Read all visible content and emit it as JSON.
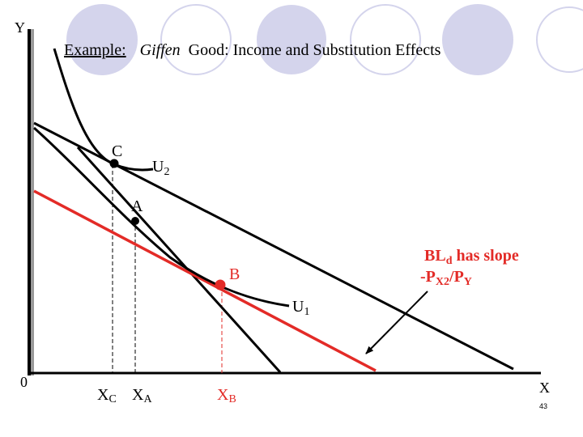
{
  "slide": {
    "title_prefix": "Example:",
    "title_italic": "Giffen",
    "title_rest": "Good: Income and Substitution Effects",
    "page_number": "43",
    "colors": {
      "red": "#e32b27",
      "black": "#000000",
      "circles": "#d4d4ec"
    }
  },
  "axes": {
    "y_label": "Y",
    "x_label": "X",
    "origin_label": "0"
  },
  "points": {
    "c_label": "C",
    "a_label": "A",
    "b_label": "B"
  },
  "curves": {
    "u2_main": "U",
    "u2_sub": "2",
    "u1_main": "U",
    "u1_sub": "1"
  },
  "x_ticks": {
    "xc_main": "X",
    "xc_sub": "C",
    "xa_main": "X",
    "xa_sub": "A",
    "xb_main": "X",
    "xb_sub": "B"
  },
  "annotation": {
    "line1_main": "BL",
    "line1_sub": "d",
    "line1_rest": " has slope",
    "line2_main": "-P",
    "line2_sub": "X2",
    "line2_mid": "/P",
    "line2_sub2": "Y"
  }
}
